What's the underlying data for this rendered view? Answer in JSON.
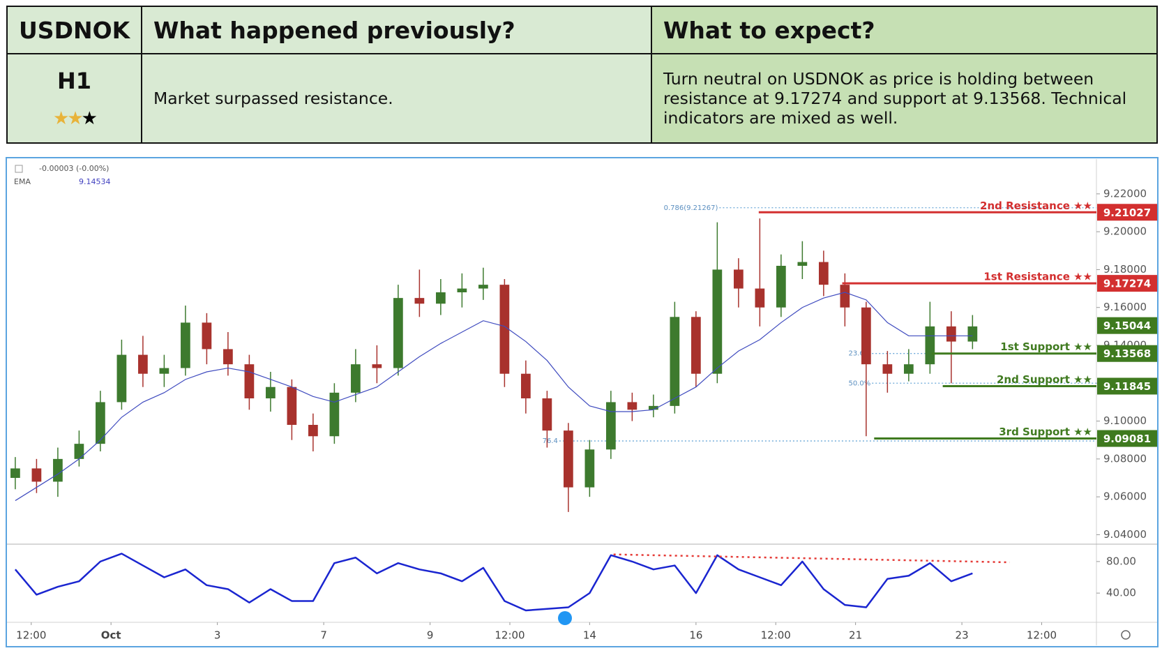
{
  "table": {
    "symbol": "USDNOK",
    "header_previous": "What happened previously?",
    "header_expect": "What to expect?",
    "timeframe": "H1",
    "previous": "Market surpassed resistance.",
    "expect": "Turn neutral on USDNOK as price is holding between resistance at 9.17274 and support at 9.13568. Technical indicators are mixed as well."
  },
  "chart_data": {
    "type": "candlestick",
    "change_label": "-0.00003 (-0.00%)",
    "ema_label": "EMA",
    "ema_value": 9.14534,
    "xlim": [
      -1.93,
      18.53
    ],
    "ylim": [
      9.035,
      9.238
    ],
    "xticks": [
      {
        "value": -1.5,
        "label": "12:00"
      },
      {
        "value": 0,
        "label": "Oct"
      },
      {
        "value": 2,
        "label": "3"
      },
      {
        "value": 4,
        "label": "7"
      },
      {
        "value": 6,
        "label": "9"
      },
      {
        "value": 7.5,
        "label": "12:00"
      },
      {
        "value": 9,
        "label": "14"
      },
      {
        "value": 11,
        "label": "16"
      },
      {
        "value": 12.5,
        "label": "12:00"
      },
      {
        "value": 14,
        "label": "21"
      },
      {
        "value": 16,
        "label": "23"
      },
      {
        "value": 17.5,
        "label": "12:00"
      }
    ],
    "yticks": [
      {
        "value": 9.04,
        "label": "9.04000"
      },
      {
        "value": 9.06,
        "label": "9.06000"
      },
      {
        "value": 9.08,
        "label": "9.08000"
      },
      {
        "value": 9.1,
        "label": "9.10000"
      },
      {
        "value": 9.12,
        "label": "9.12000"
      },
      {
        "value": 9.14,
        "label": "9.14000"
      },
      {
        "value": 9.16,
        "label": "9.16000"
      },
      {
        "value": 9.18,
        "label": "9.18000"
      },
      {
        "value": 9.2,
        "label": "9.20000"
      },
      {
        "value": 9.22,
        "label": "9.22000"
      }
    ],
    "up_color": "#3d7a2e",
    "down_color": "#a8322d",
    "candles": {
      "x": [
        -1.8,
        -1.4,
        -1,
        -0.6,
        -0.2,
        0.2,
        0.6,
        1,
        1.4,
        1.8,
        2.2,
        2.6,
        3,
        3.4,
        3.8,
        4.2,
        4.6,
        5,
        5.4,
        5.8,
        6.2,
        6.6,
        7,
        7.4,
        7.8,
        8.2,
        8.6,
        9,
        9.4,
        9.8,
        10.2,
        10.6,
        11,
        11.4,
        11.8,
        12.2,
        12.6,
        13,
        13.4,
        13.8,
        14.2,
        14.6,
        15,
        15.4,
        15.8,
        16.2
      ],
      "open": [
        9.07,
        9.075,
        9.068,
        9.08,
        9.088,
        9.11,
        9.135,
        9.125,
        9.128,
        9.152,
        9.138,
        9.13,
        9.112,
        9.118,
        9.098,
        9.092,
        9.115,
        9.13,
        9.128,
        9.165,
        9.162,
        9.168,
        9.17,
        9.172,
        9.125,
        9.112,
        9.095,
        9.065,
        9.085,
        9.11,
        9.106,
        9.108,
        9.155,
        9.125,
        9.18,
        9.17,
        9.16,
        9.182,
        9.184,
        9.172,
        9.16,
        9.13,
        9.125,
        9.13,
        9.15,
        9.142
      ],
      "high": [
        9.081,
        9.08,
        9.086,
        9.095,
        9.116,
        9.143,
        9.145,
        9.135,
        9.161,
        9.157,
        9.147,
        9.135,
        9.126,
        9.122,
        9.104,
        9.12,
        9.138,
        9.14,
        9.172,
        9.18,
        9.175,
        9.178,
        9.181,
        9.175,
        9.132,
        9.116,
        9.099,
        9.09,
        9.116,
        9.115,
        9.114,
        9.163,
        9.158,
        9.205,
        9.186,
        9.207,
        9.188,
        9.195,
        9.19,
        9.178,
        9.163,
        9.137,
        9.138,
        9.163,
        9.158,
        9.156
      ],
      "low": [
        9.064,
        9.062,
        9.06,
        9.076,
        9.084,
        9.106,
        9.118,
        9.118,
        9.124,
        9.13,
        9.124,
        9.106,
        9.105,
        9.09,
        9.084,
        9.088,
        9.11,
        9.12,
        9.124,
        9.155,
        9.156,
        9.16,
        9.164,
        9.118,
        9.104,
        9.086,
        9.052,
        9.06,
        9.08,
        9.1,
        9.102,
        9.104,
        9.118,
        9.12,
        9.16,
        9.15,
        9.155,
        9.175,
        9.166,
        9.15,
        9.092,
        9.115,
        9.121,
        9.125,
        9.12,
        9.138
      ],
      "close": [
        9.075,
        9.068,
        9.08,
        9.088,
        9.11,
        9.135,
        9.125,
        9.128,
        9.152,
        9.138,
        9.13,
        9.112,
        9.118,
        9.098,
        9.092,
        9.115,
        9.13,
        9.128,
        9.165,
        9.162,
        9.168,
        9.17,
        9.172,
        9.125,
        9.112,
        9.095,
        9.065,
        9.085,
        9.11,
        9.106,
        9.108,
        9.155,
        9.125,
        9.18,
        9.17,
        9.16,
        9.182,
        9.184,
        9.172,
        9.16,
        9.13,
        9.125,
        9.13,
        9.15,
        9.142,
        9.15
      ]
    },
    "ema": {
      "color": "#3f4bbf",
      "values": [
        9.058,
        9.065,
        9.072,
        9.08,
        9.09,
        9.102,
        9.11,
        9.115,
        9.122,
        9.126,
        9.128,
        9.126,
        9.122,
        9.118,
        9.113,
        9.11,
        9.114,
        9.118,
        9.126,
        9.134,
        9.141,
        9.147,
        9.153,
        9.15,
        9.142,
        9.132,
        9.118,
        9.108,
        9.105,
        9.105,
        9.106,
        9.112,
        9.118,
        9.128,
        9.137,
        9.143,
        9.152,
        9.16,
        9.165,
        9.168,
        9.164,
        9.152,
        9.145,
        9.145,
        9.145,
        9.145
      ]
    },
    "levels": [
      {
        "name": "2nd Resistance ★★",
        "value": 9.21027,
        "color": "#d32f2f",
        "x_start": 12.18
      },
      {
        "name": "1st Resistance ★★",
        "value": 9.17274,
        "color": "#d32f2f",
        "x_start": 13.75
      },
      {
        "name": "1st Support ★★",
        "value": 9.13568,
        "color": "#3f7a1f",
        "x_start": 15.43
      },
      {
        "name": "2nd Support ★★",
        "value": 9.11845,
        "color": "#3f7a1f",
        "x_start": 15.64
      },
      {
        "name": "3rd Support ★★",
        "value": 9.09081,
        "color": "#3f7a1f",
        "x_start": 14.35
      }
    ],
    "last_price": {
      "value": 9.15044,
      "color": "#3f7a1f"
    },
    "fibs": [
      {
        "label": "0.786(9.21267)",
        "value": 9.21267,
        "x_start": 11.44
      },
      {
        "label": "23.6%",
        "value": 9.1357,
        "x_start": 14.31
      },
      {
        "label": "50.0%",
        "value": 9.12,
        "x_start": 14.31
      },
      {
        "label": "76.4",
        "value": 9.0895,
        "x_start": 8.43
      }
    ],
    "oscillator": {
      "color": "#1a25d0",
      "ylim": [
        3,
        102
      ],
      "yticks": [
        {
          "value": 40,
          "label": "40.00"
        },
        {
          "value": 80,
          "label": "80.00"
        }
      ],
      "values": [
        70,
        38,
        48,
        55,
        80,
        90,
        75,
        60,
        70,
        50,
        45,
        28,
        45,
        30,
        30,
        78,
        85,
        65,
        78,
        70,
        65,
        55,
        72,
        30,
        18,
        20,
        22,
        40,
        88,
        80,
        70,
        75,
        40,
        88,
        70,
        60,
        50,
        80,
        45,
        25,
        22,
        58,
        62,
        78,
        55,
        65
      ],
      "trendline": {
        "x": [
          9.45,
          16.9
        ],
        "values": [
          89,
          79
        ],
        "color": "#e53935"
      }
    }
  }
}
